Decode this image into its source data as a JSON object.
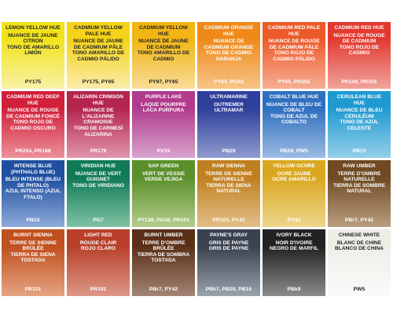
{
  "swatches": [
    {
      "name": "LEMON YELLOW HUE",
      "french": "NUANCE DE JAUNE CITRON",
      "spanish": "TONO DE AMARILLO LIMÓN",
      "pigments": "PY175"
    },
    {
      "name": "CADMIUM YELLOW PALE HUE",
      "french": "NUANCE DE JAUNE DE CADMIUM PÂLE",
      "spanish": "TONO AMARILLO DE CADMIO PÁLIDO",
      "pigments": "PY175, PY65"
    },
    {
      "name": "CADMIUM YELLOW HUE",
      "french": "NUANCE DE JAUNE DE CADMIUM",
      "spanish": "TONO AMARILLO DE CADMIO",
      "pigments": "PY97, PY65"
    },
    {
      "name": "CADMIUM ORANGE HUE",
      "french": "NUANCE DE CADMIUM ORANGE",
      "spanish": "TONO DE CADMIO NARANJA",
      "pigments": "PY83, PO43"
    },
    {
      "name": "CADMIUM RED PALE HUE",
      "french": "NUANCE DE ROUGE DE CADMIUM PÂLE",
      "spanish": "TONO ROJO DE CADMIO PÁLIDO",
      "pigments": "PY65, PR255"
    },
    {
      "name": "CADMIUM RED HUE",
      "french": "NUANCE DE ROUGE DE CADMIUM",
      "spanish": "TONO ROJO DE CADMIO",
      "pigments": "PR149, PR255"
    },
    {
      "name": "CADMIUM RED DEEP HUE",
      "french": "NUANCE DE ROUGE DE CADMIUM FONCÉ",
      "spanish": "TONO ROJO DE CADMIO OSCURO",
      "pigments": "PR254, PR188"
    },
    {
      "name": "ALIZARIN CRIMSON HUE",
      "french": "NUANCE DE L'ALIZARINE CRAMOISIE",
      "spanish": "TONO DE CARMESÍ ALIZARINA",
      "pigments": "PR179"
    },
    {
      "name": "PURPLE LAKE",
      "french": "LAQUE POURPRE",
      "spanish": "LACA PURPURA",
      "pigments": "PV19"
    },
    {
      "name": "ULTRAMARINE",
      "french": "OUTREMER",
      "spanish": "ULTRAMAR",
      "pigments": "PB29"
    },
    {
      "name": "COBALT BLUE HUE",
      "french": "NUANCE DE BLEU DE COBALT",
      "spanish": "TONO DE AZUL DE COBALTO",
      "pigments": "PB29, PW5"
    },
    {
      "name": "CERULEAN BLUE HUE",
      "french": "NUANCE DE BLEU CÉRULÉUM",
      "spanish": "TONO DE AZUL CELESTE",
      "pigments": "PB15"
    },
    {
      "name": "INTENSE BLUE (PHTHALO BLUE)",
      "french": "BLEU INTENSE (BLEU DE PHTALO)",
      "spanish": "AZUL INTENSO (AZUL FTALO)",
      "pigments": "PB15"
    },
    {
      "name": "VIRIDIAN HUE",
      "french": "NUANCE DE VERT GUIGNET",
      "spanish": "TONO DE VIRIDIANO",
      "pigments": "PG7"
    },
    {
      "name": "SAP GREEN",
      "french": "VERT DE VESSIE",
      "spanish": "VERDE VEJIGA",
      "pigments": "PY139, PG36, PR101"
    },
    {
      "name": "RAW SIENNA",
      "french": "TERRE DE SIENNE NATURELLE",
      "spanish": "TIERRA DE SIENA NATURAL",
      "pigments": "PR101, PY42"
    },
    {
      "name": "YELLOW OCHRE",
      "french": "OCRE JAUNE",
      "spanish": "OCRE AMARILLO",
      "pigments": "PY42"
    },
    {
      "name": "RAW UMBER",
      "french": "TERRE D'OMBRE NATURELLE",
      "spanish": "TIERRA DE SOMBRE NATURAL",
      "pigments": "PBr7, PY42"
    },
    {
      "name": "BURNT SIENNA",
      "french": "TERRE DE SIENNE BRÛLÉE",
      "spanish": "TIERRA DE SIENA TOSTADA",
      "pigments": "PR101"
    },
    {
      "name": "LIGHT RED",
      "french": "ROUGE CLAIR",
      "spanish": "ROJO CLARO",
      "pigments": "PR101"
    },
    {
      "name": "BURNT UMBER",
      "french": "TERRE D'OMBRE BRÛLÉE",
      "spanish": "TIERRA DE SOMBRA TOSTADA",
      "pigments": "PBr7, PY42"
    },
    {
      "name": "PAYNE'S GRAY",
      "french": "GRIS DE PAYNE",
      "spanish": "GRIS DE PAYNE",
      "pigments": "PBk7, PB29, PB15"
    },
    {
      "name": "IVORY BLACK",
      "french": "NOIR D'IVOIRE",
      "spanish": "NEGRO DE MARFIL",
      "pigments": "PBk9"
    },
    {
      "name": "CHINESE WHITE",
      "french": "BLANC DE CHINE",
      "spanish": "BLANCO DE CHINA",
      "pigments": "PW5"
    }
  ]
}
